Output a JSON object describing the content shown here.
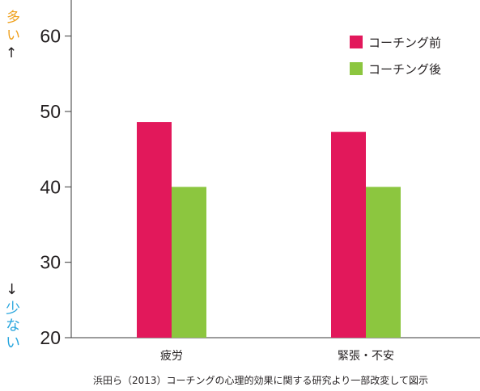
{
  "chart_data": {
    "type": "bar",
    "categories": [
      "疲労",
      "緊張・不安"
    ],
    "series": [
      {
        "name": "コーチング前",
        "values": [
          48.6,
          47.3
        ],
        "color": "#E2185B"
      },
      {
        "name": "コーチング後",
        "values": [
          40,
          40
        ],
        "color": "#8CC63F"
      }
    ],
    "ylim": [
      20,
      65
    ],
    "yticks": [
      60,
      50,
      40,
      30,
      20
    ],
    "grid": false,
    "legend_position": "top-right",
    "y_annotation": {
      "high_text": "多い",
      "high_arrow": "↑",
      "low_arrow": "↓",
      "low_text": "少ない",
      "high_color": "#EFA01C",
      "low_color": "#29A6DE"
    }
  },
  "caption": "浜田ら（2013）コーチングの心理的効果に関する研究より一部改変して図示"
}
